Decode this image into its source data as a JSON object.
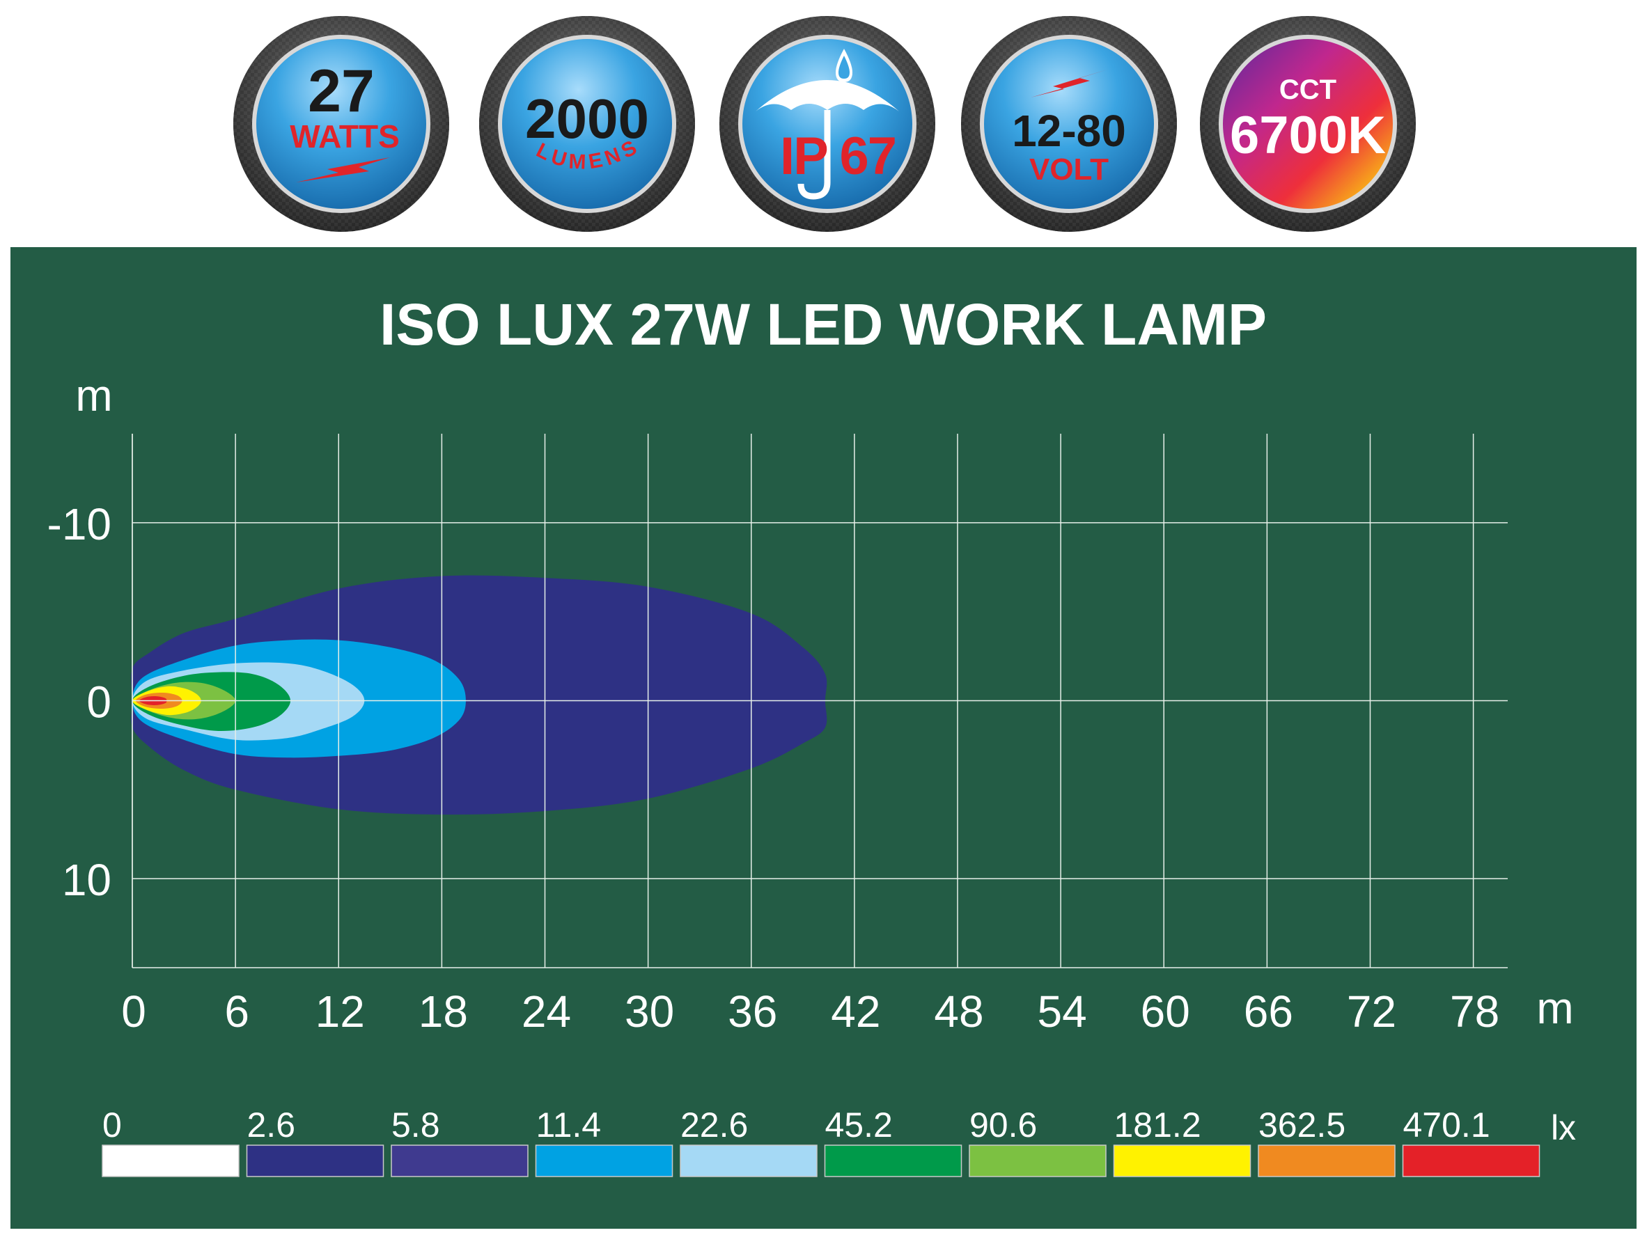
{
  "badges": [
    {
      "big": "27",
      "small": "WATTS",
      "icon": "lightning-bolt-icon"
    },
    {
      "big": "2000",
      "small": "LUMENS"
    },
    {
      "big": "IP 67",
      "icon": "umbrella-rain-icon"
    },
    {
      "big": "12-80",
      "small": "VOLT",
      "icon": "lightning-bolt-icon"
    },
    {
      "top": "CCT",
      "big": "6700K"
    }
  ],
  "colors": {
    "panel_bg": "#235c45",
    "badge_face": "#3aa4e2",
    "badge_text_dark": "#1a1a1a",
    "badge_text_red": "#e0242a"
  },
  "chart_data": {
    "type": "heatmap",
    "title": "ISO LUX 27W LED WORK LAMP",
    "xlabel": "m",
    "ylabel": "m",
    "xlim": [
      0,
      80
    ],
    "ylim": [
      -15,
      15
    ],
    "y_inverted": true,
    "grid": true,
    "x_ticks": [
      0,
      6,
      12,
      18,
      24,
      30,
      36,
      42,
      48,
      54,
      60,
      66,
      72,
      78
    ],
    "y_ticks": [
      -10,
      0,
      10
    ],
    "legend": {
      "position": "bottom",
      "unit": "lx",
      "levels": [
        {
          "value": "0",
          "color": "#ffffff"
        },
        {
          "value": "2.6",
          "color": "#2e3184"
        },
        {
          "value": "5.8",
          "color": "#3f3a8f"
        },
        {
          "value": "11.4",
          "color": "#00a2e3"
        },
        {
          "value": "22.6",
          "color": "#a5d9f5"
        },
        {
          "value": "45.2",
          "color": "#009a4a"
        },
        {
          "value": "90.6",
          "color": "#7cc142"
        },
        {
          "value": "181.2",
          "color": "#fff200"
        },
        {
          "value": "362.5",
          "color": "#f08a20"
        },
        {
          "value": "470.1",
          "color": "#e42128"
        }
      ]
    },
    "contours": [
      {
        "lux": 2.6,
        "color": "#2e3184",
        "points": [
          [
            0,
            0
          ],
          [
            0,
            -1.8
          ],
          [
            1,
            -2.7
          ],
          [
            3,
            -3.8
          ],
          [
            6,
            -4.6
          ],
          [
            12,
            -6.3
          ],
          [
            18,
            -7
          ],
          [
            24,
            -6.9
          ],
          [
            30,
            -6.4
          ],
          [
            36,
            -4.9
          ],
          [
            39,
            -3
          ],
          [
            40.3,
            -1.5
          ],
          [
            40.3,
            0
          ],
          [
            40.3,
            1.5
          ],
          [
            39,
            2.4
          ],
          [
            36,
            3.8
          ],
          [
            30,
            5.5
          ],
          [
            24,
            6.2
          ],
          [
            18,
            6.4
          ],
          [
            12,
            6.1
          ],
          [
            6,
            5
          ],
          [
            3,
            3.9
          ],
          [
            1,
            2.6
          ],
          [
            0,
            1.5
          ]
        ]
      },
      {
        "lux": 11.4,
        "color": "#00a2e3",
        "points": [
          [
            0,
            0
          ],
          [
            0.6,
            -1.3
          ],
          [
            3,
            -2.3
          ],
          [
            6,
            -3.1
          ],
          [
            9,
            -3.4
          ],
          [
            12,
            -3.4
          ],
          [
            15,
            -3
          ],
          [
            17.5,
            -2.3
          ],
          [
            19,
            -1.2
          ],
          [
            19.4,
            0
          ],
          [
            19,
            1.1
          ],
          [
            17.5,
            2.1
          ],
          [
            15,
            2.8
          ],
          [
            12,
            3.1
          ],
          [
            9,
            3.2
          ],
          [
            6,
            3
          ],
          [
            3,
            2.2
          ],
          [
            0.6,
            1.2
          ]
        ]
      },
      {
        "lux": 22.6,
        "color": "#a5d9f5",
        "points": [
          [
            0,
            0
          ],
          [
            0.8,
            -1.1
          ],
          [
            3,
            -1.7
          ],
          [
            6,
            -2.1
          ],
          [
            9,
            -2.1
          ],
          [
            11,
            -1.7
          ],
          [
            12.8,
            -0.9
          ],
          [
            13.5,
            0
          ],
          [
            12.8,
            0.9
          ],
          [
            11,
            1.6
          ],
          [
            9,
            2.1
          ],
          [
            6,
            2.2
          ],
          [
            3,
            1.6
          ],
          [
            0.8,
            1
          ]
        ]
      },
      {
        "lux": 45.2,
        "color": "#009a4a",
        "points": [
          [
            0,
            0
          ],
          [
            1,
            -0.8
          ],
          [
            3,
            -1.4
          ],
          [
            5,
            -1.6
          ],
          [
            7,
            -1.5
          ],
          [
            8.5,
            -0.9
          ],
          [
            9.2,
            0
          ],
          [
            8.5,
            0.9
          ],
          [
            7,
            1.5
          ],
          [
            5,
            1.7
          ],
          [
            3,
            1.4
          ],
          [
            1,
            0.8
          ]
        ]
      },
      {
        "lux": 90.6,
        "color": "#7cc142",
        "points": [
          [
            0,
            0
          ],
          [
            1,
            -0.6
          ],
          [
            2.5,
            -1
          ],
          [
            4,
            -1
          ],
          [
            5.3,
            -0.6
          ],
          [
            6,
            0
          ],
          [
            5.3,
            0.6
          ],
          [
            4,
            1
          ],
          [
            2.5,
            1
          ],
          [
            1,
            0.6
          ]
        ]
      },
      {
        "lux": 181.2,
        "color": "#fff200",
        "points": [
          [
            0,
            0
          ],
          [
            0.8,
            -0.5
          ],
          [
            2,
            -0.8
          ],
          [
            3,
            -0.7
          ],
          [
            3.7,
            -0.4
          ],
          [
            4,
            0
          ],
          [
            3.7,
            0.4
          ],
          [
            3,
            0.7
          ],
          [
            2,
            0.8
          ],
          [
            0.8,
            0.5
          ]
        ]
      },
      {
        "lux": 362.5,
        "color": "#f08a20",
        "points": [
          [
            0.2,
            0
          ],
          [
            0.8,
            -0.35
          ],
          [
            1.8,
            -0.45
          ],
          [
            2.6,
            -0.3
          ],
          [
            2.9,
            0
          ],
          [
            2.6,
            0.3
          ],
          [
            1.8,
            0.45
          ],
          [
            0.8,
            0.35
          ]
        ]
      },
      {
        "lux": 470.1,
        "color": "#e42128",
        "points": [
          [
            0.4,
            0
          ],
          [
            0.8,
            -0.2
          ],
          [
            1.4,
            -0.25
          ],
          [
            1.9,
            -0.15
          ],
          [
            2,
            0
          ],
          [
            1.9,
            0.15
          ],
          [
            1.4,
            0.25
          ],
          [
            0.8,
            0.2
          ]
        ]
      }
    ]
  }
}
